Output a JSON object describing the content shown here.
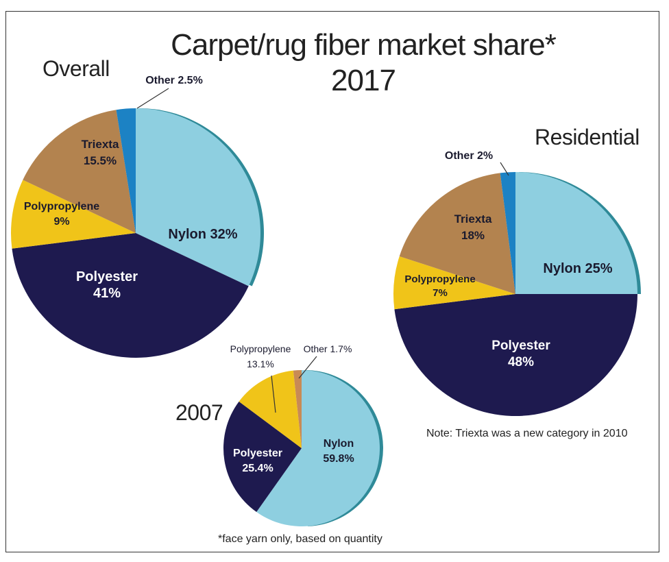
{
  "title_line1": "Carpet/rug fiber market share*",
  "title_line2": "2017",
  "note_triexta": "Note: Triexta was a new category in 2010",
  "footnote": "*face yarn only, based on quantity",
  "colors": {
    "nylon": "#8ecfe0",
    "nylon_edge": "#2f8a98",
    "polyester": "#1e1a4f",
    "polypropylene": "#f0c419",
    "triexta": "#b3834f",
    "other_overall": "#1c82c4",
    "other_2007": "#c88a55"
  },
  "chart_data": [
    {
      "type": "pie",
      "title": "Overall",
      "slices": [
        {
          "name": "Nylon",
          "value": 32,
          "label": "Nylon 32%"
        },
        {
          "name": "Polyester",
          "value": 41,
          "label_lines": [
            "Polyester",
            "41%"
          ]
        },
        {
          "name": "Polypropylene",
          "value": 9,
          "label_lines": [
            "Polypropylene",
            "9%"
          ]
        },
        {
          "name": "Triexta",
          "value": 15.5,
          "label_lines": [
            "Triexta",
            "15.5%"
          ]
        },
        {
          "name": "Other",
          "value": 2.5,
          "label": "Other 2.5%"
        }
      ]
    },
    {
      "type": "pie",
      "title": "Residential",
      "slices": [
        {
          "name": "Nylon",
          "value": 25,
          "label": "Nylon 25%"
        },
        {
          "name": "Polyester",
          "value": 48,
          "label_lines": [
            "Polyester",
            "48%"
          ]
        },
        {
          "name": "Polypropylene",
          "value": 7,
          "label_lines": [
            "Polypropylene",
            "7%"
          ]
        },
        {
          "name": "Triexta",
          "value": 18,
          "label_lines": [
            "Triexta",
            "18%"
          ]
        },
        {
          "name": "Other",
          "value": 2,
          "label": "Other 2%"
        }
      ]
    },
    {
      "type": "pie",
      "title": "2007",
      "slices": [
        {
          "name": "Nylon",
          "value": 59.8,
          "label_lines": [
            "Nylon",
            "59.8%"
          ]
        },
        {
          "name": "Polyester",
          "value": 25.4,
          "label_lines": [
            "Polyester",
            "25.4%"
          ]
        },
        {
          "name": "Polypropylene",
          "value": 13.1,
          "label_lines": [
            "Polypropylene",
            "13.1%"
          ]
        },
        {
          "name": "Other",
          "value": 1.7,
          "label": "Other 1.7%"
        }
      ]
    }
  ]
}
